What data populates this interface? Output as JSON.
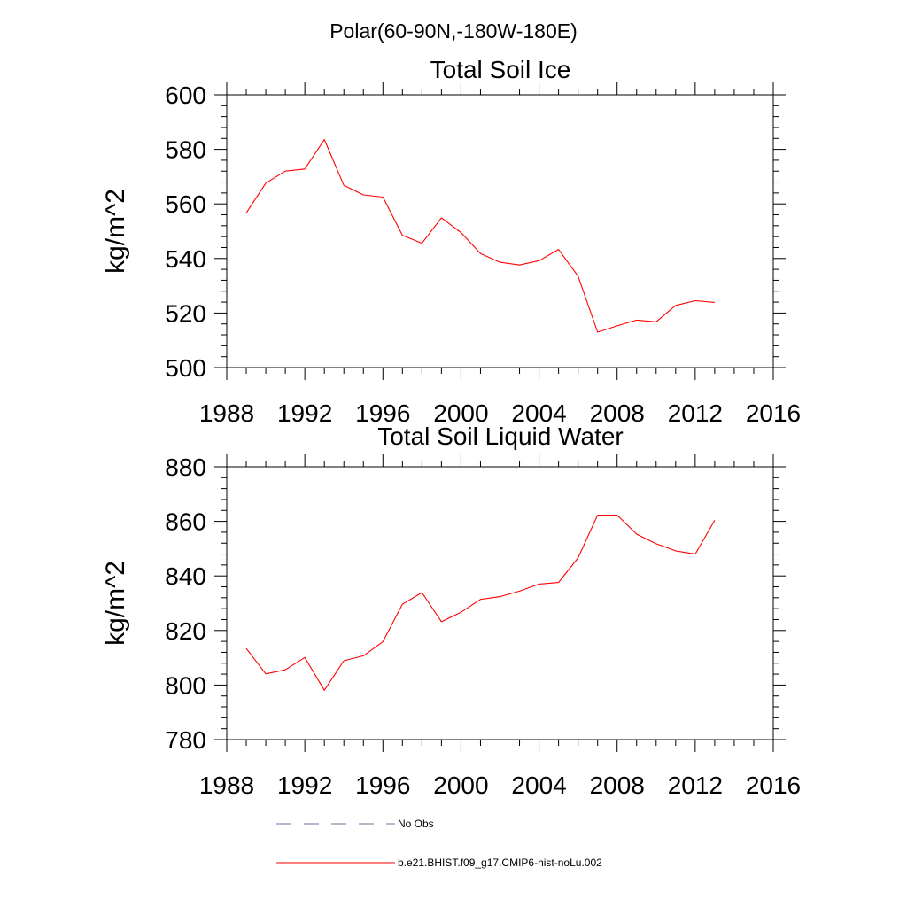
{
  "figure": {
    "title": "Polar(60-90N,-180W-180E)"
  },
  "chart_data": [
    {
      "type": "line",
      "title": "Total Soil Ice",
      "xlabel": "",
      "ylabel": "kg/m^2",
      "xlim": [
        1988,
        2016
      ],
      "ylim": [
        500,
        600
      ],
      "xticks": [
        "1988",
        "1992",
        "1996",
        "2000",
        "2004",
        "2008",
        "2012",
        "2016"
      ],
      "yticks": [
        "500",
        "520",
        "540",
        "560",
        "580",
        "600"
      ],
      "grid": false,
      "x": [
        1989,
        1990,
        1991,
        1992,
        1993,
        1994,
        1995,
        1996,
        1997,
        1998,
        1999,
        2000,
        2001,
        2002,
        2003,
        2004,
        2005,
        2006,
        2007,
        2008,
        2009,
        2010,
        2011,
        2012,
        2013
      ],
      "series": [
        {
          "name": "b.e21.BHIST.f09_g17.CMIP6-hist-noLu.002",
          "color": "#ff0000",
          "values": [
            556.7,
            567.6,
            572.0,
            572.8,
            583.6,
            566.8,
            563.3,
            562.5,
            548.5,
            545.6,
            554.9,
            549.5,
            541.8,
            538.6,
            537.6,
            539.2,
            543.3,
            533.5,
            513.0,
            515.3,
            517.4,
            516.8,
            522.8,
            524.5,
            523.9
          ]
        }
      ]
    },
    {
      "type": "line",
      "title": "Total Soil Liquid Water",
      "xlabel": "",
      "ylabel": "kg/m^2",
      "xlim": [
        1988,
        2016
      ],
      "ylim": [
        780,
        880
      ],
      "xticks": [
        "1988",
        "1992",
        "1996",
        "2000",
        "2004",
        "2008",
        "2012",
        "2016"
      ],
      "yticks": [
        "780",
        "800",
        "820",
        "840",
        "860",
        "880"
      ],
      "grid": false,
      "x": [
        1989,
        1990,
        1991,
        1992,
        1993,
        1994,
        1995,
        1996,
        1997,
        1998,
        1999,
        2000,
        2001,
        2002,
        2003,
        2004,
        2005,
        2006,
        2007,
        2008,
        2009,
        2010,
        2011,
        2012,
        2013
      ],
      "series": [
        {
          "name": "b.e21.BHIST.f09_g17.CMIP6-hist-noLu.002",
          "color": "#ff0000",
          "values": [
            813.4,
            804.1,
            805.6,
            810.1,
            798.1,
            808.9,
            810.7,
            815.9,
            829.6,
            833.9,
            823.2,
            826.7,
            831.4,
            832.4,
            834.4,
            837.0,
            837.6,
            846.6,
            862.3,
            862.3,
            855.3,
            851.8,
            849.2,
            848.0,
            860.4
          ]
        }
      ]
    }
  ],
  "legend": {
    "placement": "bottom-center",
    "items": [
      {
        "label": "No Obs",
        "color": "#6f6fa0",
        "style": "dashed"
      },
      {
        "label": "b.e21.BHIST.f09_g17.CMIP6-hist-noLu.002",
        "color": "#ff0000",
        "style": "solid"
      }
    ]
  }
}
